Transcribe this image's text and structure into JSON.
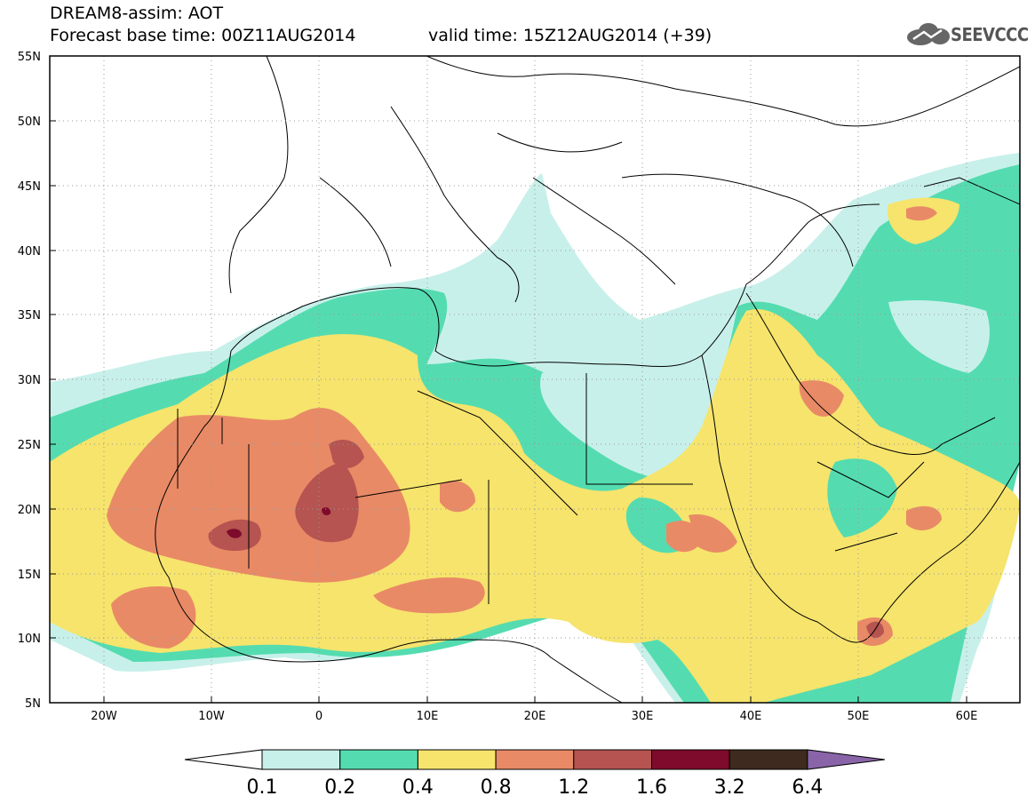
{
  "title": {
    "line1": "DREAM8-assim: AOT",
    "line2": "Forecast base time: 00Z11AUG2014",
    "valid": "valid time: 15Z12AUG2014 (+39)"
  },
  "logo": {
    "icon": "cloud-icon",
    "text": "SEEVCCC"
  },
  "map": {
    "lon_range": [
      -25,
      65
    ],
    "lat_range": [
      5,
      55
    ],
    "lat_ticks": [
      "55N",
      "50N",
      "45N",
      "40N",
      "35N",
      "30N",
      "25N",
      "20N",
      "15N",
      "10N",
      "5N"
    ],
    "lon_ticks": [
      "20W",
      "10W",
      "0",
      "10E",
      "20E",
      "30E",
      "40E",
      "50E",
      "60E"
    ],
    "grid": "dotted"
  },
  "colorbar": {
    "labels": [
      "0.1",
      "0.2",
      "0.4",
      "0.8",
      "1.2",
      "1.6",
      "3.2",
      "6.4"
    ],
    "colors": [
      "#ffffff",
      "#c8f0ea",
      "#54dcb0",
      "#f6e46c",
      "#e98a66",
      "#b55450",
      "#7e0b2c",
      "#3e2a1e",
      "#8a64a8"
    ]
  }
}
